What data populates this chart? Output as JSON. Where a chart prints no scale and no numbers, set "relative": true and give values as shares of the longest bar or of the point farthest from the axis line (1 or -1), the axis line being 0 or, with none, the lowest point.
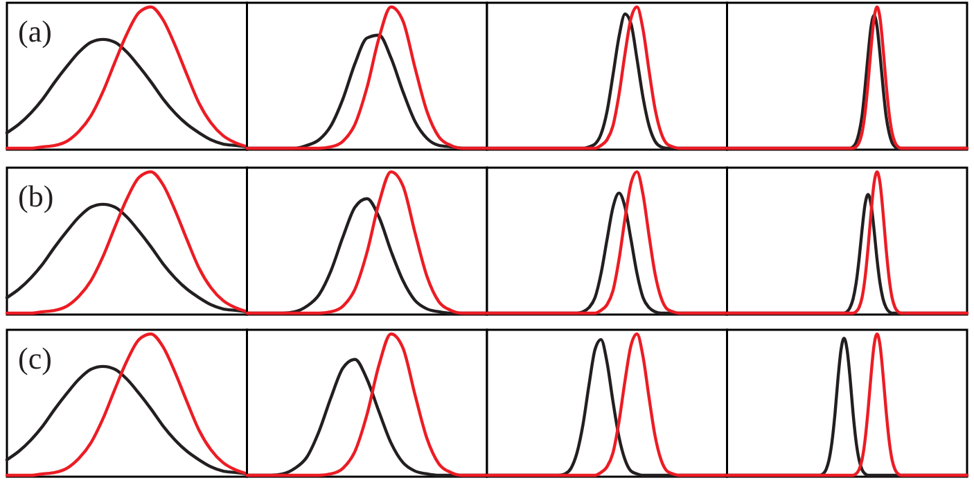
{
  "chart_data": [
    {
      "type": "line",
      "relative": true,
      "annotations": [
        "(a)"
      ],
      "categories": [
        null,
        null,
        null,
        null,
        null,
        null,
        null,
        null,
        null,
        null,
        null,
        null,
        null,
        null,
        null,
        null,
        null,
        null,
        null,
        null,
        null
      ],
      "series": [
        {
          "color": "#231f20",
          "values": [
            0.11,
            0.17,
            0.25,
            0.35,
            0.47,
            0.58,
            0.68,
            0.75,
            0.77,
            0.75,
            0.68,
            0.58,
            0.47,
            0.35,
            0.25,
            0.17,
            0.11,
            0.06,
            0.03,
            0.02,
            0.01
          ]
        },
        {
          "color": "#ec1c24",
          "values": [
            0,
            0,
            0,
            0.01,
            0.02,
            0.05,
            0.12,
            0.23,
            0.4,
            0.61,
            0.81,
            0.96,
            1,
            0.91,
            0.73,
            0.52,
            0.32,
            0.18,
            0.09,
            0.04,
            0.01
          ]
        }
      ]
    },
    {
      "type": "line",
      "relative": true,
      "categories": [
        null,
        null,
        null,
        null,
        null,
        null,
        null,
        null,
        null,
        null,
        null,
        null,
        null,
        null,
        null,
        null,
        null,
        null,
        null,
        null,
        null
      ],
      "series": [
        {
          "color": "#231f20",
          "values": [
            0,
            0,
            0,
            0,
            0,
            0.02,
            0.06,
            0.16,
            0.35,
            0.6,
            0.78,
            0.8,
            0.64,
            0.4,
            0.19,
            0.07,
            0.02,
            0.01,
            0,
            0,
            0
          ]
        },
        {
          "color": "#ec1c24",
          "values": [
            0,
            0,
            0,
            0,
            0,
            0,
            0,
            0.01,
            0.05,
            0.17,
            0.43,
            0.78,
            1,
            0.9,
            0.57,
            0.26,
            0.08,
            0.02,
            0,
            0,
            0
          ]
        }
      ]
    },
    {
      "type": "line",
      "relative": true,
      "categories": [
        null,
        null,
        null,
        null,
        null,
        null,
        null,
        null,
        null,
        null,
        null,
        null,
        null,
        null,
        null,
        null,
        null,
        null,
        null,
        null,
        null,
        null,
        null,
        null,
        null,
        null,
        null,
        null,
        null,
        null,
        null,
        null,
        null,
        null,
        null,
        null,
        null,
        null,
        null,
        null,
        null
      ],
      "series": [
        {
          "color": "#231f20",
          "values": [
            0,
            0,
            0,
            0,
            0,
            0,
            0,
            0,
            0,
            0,
            0,
            0,
            0,
            0,
            0,
            0,
            0,
            0.01,
            0.03,
            0.1,
            0.26,
            0.52,
            0.79,
            0.95,
            0.88,
            0.63,
            0.36,
            0.16,
            0.05,
            0.01,
            0,
            0,
            0,
            0,
            0,
            0,
            0,
            0,
            0,
            0,
            0
          ]
        },
        {
          "color": "#ec1c24",
          "values": [
            0,
            0,
            0,
            0,
            0,
            0,
            0,
            0,
            0,
            0,
            0,
            0,
            0,
            0,
            0,
            0,
            0,
            0,
            0,
            0.02,
            0.06,
            0.16,
            0.38,
            0.67,
            0.92,
            1,
            0.84,
            0.55,
            0.28,
            0.11,
            0.03,
            0.01,
            0,
            0,
            0,
            0,
            0,
            0,
            0,
            0,
            0
          ]
        }
      ]
    },
    {
      "type": "line",
      "relative": true,
      "categories": [
        null,
        null,
        null,
        null,
        null,
        null,
        null,
        null,
        null,
        null,
        null,
        null,
        null,
        null,
        null,
        null,
        null,
        null,
        null,
        null,
        null,
        null,
        null,
        null,
        null,
        null,
        null,
        null,
        null,
        null,
        null,
        null,
        null,
        null,
        null,
        null,
        null,
        null,
        null,
        null,
        null,
        null,
        null,
        null,
        null,
        null,
        null,
        null,
        null,
        null,
        null,
        null,
        null,
        null,
        null,
        null,
        null,
        null,
        null,
        null,
        null,
        null,
        null,
        null,
        null,
        null,
        null,
        null,
        null,
        null,
        null,
        null,
        null,
        null,
        null,
        null,
        null,
        null,
        null,
        null,
        null
      ],
      "series": [
        {
          "color": "#231f20",
          "values": [
            0,
            0,
            0,
            0,
            0,
            0,
            0,
            0,
            0,
            0,
            0,
            0,
            0,
            0,
            0,
            0,
            0,
            0,
            0,
            0,
            0,
            0,
            0,
            0,
            0,
            0,
            0,
            0,
            0,
            0,
            0,
            0,
            0,
            0,
            0,
            0,
            0,
            0,
            0,
            0,
            0,
            0,
            0.01,
            0.04,
            0.11,
            0.23,
            0.43,
            0.66,
            0.86,
            0.94,
            0.86,
            0.66,
            0.43,
            0.23,
            0.11,
            0.04,
            0.01,
            0,
            0,
            0,
            0,
            0,
            0,
            0,
            0,
            0,
            0,
            0,
            0,
            0,
            0,
            0,
            0,
            0,
            0,
            0,
            0,
            0,
            0,
            0,
            0
          ]
        },
        {
          "color": "#ec1c24",
          "values": [
            0,
            0,
            0,
            0,
            0,
            0,
            0,
            0,
            0,
            0,
            0,
            0,
            0,
            0,
            0,
            0,
            0,
            0,
            0,
            0,
            0,
            0,
            0,
            0,
            0,
            0,
            0,
            0,
            0,
            0,
            0,
            0,
            0,
            0,
            0,
            0,
            0,
            0,
            0,
            0,
            0,
            0,
            0,
            0.01,
            0.04,
            0.11,
            0.25,
            0.46,
            0.71,
            0.92,
            1,
            0.92,
            0.71,
            0.46,
            0.25,
            0.11,
            0.04,
            0.01,
            0,
            0,
            0,
            0,
            0,
            0,
            0,
            0,
            0,
            0,
            0,
            0,
            0,
            0,
            0,
            0,
            0,
            0,
            0,
            0,
            0,
            0,
            0
          ]
        }
      ]
    },
    {
      "type": "line",
      "relative": true,
      "annotations": [
        "(b)"
      ],
      "categories": [
        null,
        null,
        null,
        null,
        null,
        null,
        null,
        null,
        null,
        null,
        null,
        null,
        null,
        null,
        null,
        null,
        null,
        null,
        null,
        null,
        null
      ],
      "series": [
        {
          "color": "#231f20",
          "values": [
            0.11,
            0.17,
            0.25,
            0.35,
            0.47,
            0.58,
            0.68,
            0.75,
            0.77,
            0.75,
            0.68,
            0.58,
            0.47,
            0.35,
            0.25,
            0.17,
            0.11,
            0.06,
            0.03,
            0.02,
            0.01
          ]
        },
        {
          "color": "#ec1c24",
          "values": [
            0,
            0,
            0,
            0.01,
            0.02,
            0.05,
            0.12,
            0.23,
            0.4,
            0.61,
            0.81,
            0.96,
            1,
            0.91,
            0.73,
            0.52,
            0.32,
            0.18,
            0.09,
            0.04,
            0.01
          ]
        }
      ]
    },
    {
      "type": "line",
      "relative": true,
      "categories": [
        null,
        null,
        null,
        null,
        null,
        null,
        null,
        null,
        null,
        null,
        null,
        null,
        null,
        null,
        null,
        null,
        null,
        null,
        null,
        null,
        null
      ],
      "series": [
        {
          "color": "#231f20",
          "values": [
            0,
            0,
            0,
            0,
            0.01,
            0.05,
            0.13,
            0.3,
            0.54,
            0.75,
            0.81,
            0.68,
            0.44,
            0.23,
            0.09,
            0.03,
            0.01,
            0,
            0,
            0,
            0
          ]
        },
        {
          "color": "#ec1c24",
          "values": [
            0,
            0,
            0,
            0,
            0,
            0,
            0,
            0.01,
            0.05,
            0.17,
            0.43,
            0.78,
            1,
            0.9,
            0.57,
            0.26,
            0.08,
            0.02,
            0,
            0,
            0
          ]
        }
      ]
    },
    {
      "type": "line",
      "relative": true,
      "categories": [
        null,
        null,
        null,
        null,
        null,
        null,
        null,
        null,
        null,
        null,
        null,
        null,
        null,
        null,
        null,
        null,
        null,
        null,
        null,
        null,
        null,
        null,
        null,
        null,
        null,
        null,
        null,
        null,
        null,
        null,
        null,
        null,
        null,
        null,
        null,
        null,
        null,
        null,
        null,
        null,
        null
      ],
      "series": [
        {
          "color": "#231f20",
          "values": [
            0,
            0,
            0,
            0,
            0,
            0,
            0,
            0,
            0,
            0,
            0,
            0,
            0,
            0,
            0,
            0,
            0.01,
            0.04,
            0.11,
            0.28,
            0.52,
            0.75,
            0.85,
            0.75,
            0.52,
            0.28,
            0.11,
            0.04,
            0.01,
            0,
            0,
            0,
            0,
            0,
            0,
            0,
            0,
            0,
            0,
            0,
            0
          ]
        },
        {
          "color": "#ec1c24",
          "values": [
            0,
            0,
            0,
            0,
            0,
            0,
            0,
            0,
            0,
            0,
            0,
            0,
            0,
            0,
            0,
            0,
            0,
            0,
            0,
            0.02,
            0.06,
            0.16,
            0.38,
            0.67,
            0.92,
            1,
            0.84,
            0.55,
            0.28,
            0.11,
            0.03,
            0.01,
            0,
            0,
            0,
            0,
            0,
            0,
            0,
            0,
            0
          ]
        }
      ]
    },
    {
      "type": "line",
      "relative": true,
      "categories": [
        null,
        null,
        null,
        null,
        null,
        null,
        null,
        null,
        null,
        null,
        null,
        null,
        null,
        null,
        null,
        null,
        null,
        null,
        null,
        null,
        null,
        null,
        null,
        null,
        null,
        null,
        null,
        null,
        null,
        null,
        null,
        null,
        null,
        null,
        null,
        null,
        null,
        null,
        null,
        null,
        null,
        null,
        null,
        null,
        null,
        null,
        null,
        null,
        null,
        null,
        null,
        null,
        null,
        null,
        null,
        null,
        null,
        null,
        null,
        null,
        null,
        null,
        null,
        null,
        null,
        null,
        null,
        null,
        null,
        null,
        null,
        null,
        null,
        null,
        null,
        null,
        null,
        null,
        null,
        null,
        null
      ],
      "series": [
        {
          "color": "#231f20",
          "values": [
            0,
            0,
            0,
            0,
            0,
            0,
            0,
            0,
            0,
            0,
            0,
            0,
            0,
            0,
            0,
            0,
            0,
            0,
            0,
            0,
            0,
            0,
            0,
            0,
            0,
            0,
            0,
            0,
            0,
            0,
            0,
            0,
            0,
            0,
            0,
            0,
            0,
            0,
            0,
            0,
            0.01,
            0.04,
            0.1,
            0.21,
            0.38,
            0.59,
            0.77,
            0.84,
            0.77,
            0.59,
            0.38,
            0.21,
            0.1,
            0.04,
            0.01,
            0,
            0,
            0,
            0,
            0,
            0,
            0,
            0,
            0,
            0,
            0,
            0,
            0,
            0,
            0,
            0,
            0,
            0,
            0,
            0,
            0,
            0,
            0,
            0,
            0,
            0
          ]
        },
        {
          "color": "#ec1c24",
          "values": [
            0,
            0,
            0,
            0,
            0,
            0,
            0,
            0,
            0,
            0,
            0,
            0,
            0,
            0,
            0,
            0,
            0,
            0,
            0,
            0,
            0,
            0,
            0,
            0,
            0,
            0,
            0,
            0,
            0,
            0,
            0,
            0,
            0,
            0,
            0,
            0,
            0,
            0,
            0,
            0,
            0,
            0,
            0,
            0.01,
            0.04,
            0.11,
            0.25,
            0.46,
            0.71,
            0.92,
            1,
            0.92,
            0.71,
            0.46,
            0.25,
            0.11,
            0.04,
            0.01,
            0,
            0,
            0,
            0,
            0,
            0,
            0,
            0,
            0,
            0,
            0,
            0,
            0,
            0,
            0,
            0,
            0,
            0,
            0,
            0,
            0,
            0,
            0
          ]
        }
      ]
    },
    {
      "type": "line",
      "relative": true,
      "annotations": [
        "(c)"
      ],
      "categories": [
        null,
        null,
        null,
        null,
        null,
        null,
        null,
        null,
        null,
        null,
        null,
        null,
        null,
        null,
        null,
        null,
        null,
        null,
        null,
        null,
        null
      ],
      "series": [
        {
          "color": "#231f20",
          "values": [
            0.11,
            0.17,
            0.25,
            0.35,
            0.47,
            0.58,
            0.68,
            0.75,
            0.77,
            0.75,
            0.68,
            0.58,
            0.47,
            0.35,
            0.25,
            0.17,
            0.11,
            0.06,
            0.03,
            0.02,
            0.01
          ]
        },
        {
          "color": "#ec1c24",
          "values": [
            0,
            0,
            0,
            0.01,
            0.02,
            0.05,
            0.12,
            0.23,
            0.4,
            0.61,
            0.81,
            0.96,
            1,
            0.91,
            0.73,
            0.52,
            0.32,
            0.18,
            0.09,
            0.04,
            0.01
          ]
        }
      ]
    },
    {
      "type": "line",
      "relative": true,
      "categories": [
        null,
        null,
        null,
        null,
        null,
        null,
        null,
        null,
        null,
        null,
        null,
        null,
        null,
        null,
        null,
        null,
        null,
        null,
        null,
        null,
        null
      ],
      "series": [
        {
          "color": "#231f20",
          "values": [
            0,
            0,
            0,
            0.01,
            0.05,
            0.13,
            0.31,
            0.55,
            0.76,
            0.82,
            0.68,
            0.45,
            0.23,
            0.09,
            0.03,
            0.01,
            0,
            0,
            0,
            0,
            0
          ]
        },
        {
          "color": "#ec1c24",
          "values": [
            0,
            0,
            0,
            0,
            0,
            0,
            0,
            0.01,
            0.05,
            0.17,
            0.43,
            0.78,
            1,
            0.9,
            0.57,
            0.26,
            0.08,
            0.02,
            0,
            0,
            0
          ]
        }
      ]
    },
    {
      "type": "line",
      "relative": true,
      "categories": [
        null,
        null,
        null,
        null,
        null,
        null,
        null,
        null,
        null,
        null,
        null,
        null,
        null,
        null,
        null,
        null,
        null,
        null,
        null,
        null,
        null,
        null,
        null,
        null,
        null,
        null,
        null,
        null,
        null,
        null,
        null,
        null,
        null,
        null,
        null,
        null,
        null,
        null,
        null,
        null,
        null
      ],
      "series": [
        {
          "color": "#231f20",
          "values": [
            0,
            0,
            0,
            0,
            0,
            0,
            0,
            0,
            0,
            0,
            0,
            0,
            0,
            0.01,
            0.05,
            0.16,
            0.36,
            0.64,
            0.89,
            0.96,
            0.8,
            0.52,
            0.27,
            0.11,
            0.03,
            0.01,
            0,
            0,
            0,
            0,
            0,
            0,
            0,
            0,
            0,
            0,
            0,
            0,
            0,
            0,
            0
          ]
        },
        {
          "color": "#ec1c24",
          "values": [
            0,
            0,
            0,
            0,
            0,
            0,
            0,
            0,
            0,
            0,
            0,
            0,
            0,
            0,
            0,
            0,
            0,
            0,
            0,
            0.02,
            0.06,
            0.16,
            0.38,
            0.67,
            0.92,
            1,
            0.84,
            0.55,
            0.28,
            0.11,
            0.03,
            0.01,
            0,
            0,
            0,
            0,
            0,
            0,
            0,
            0,
            0
          ]
        }
      ]
    },
    {
      "type": "line",
      "relative": true,
      "categories": [
        null,
        null,
        null,
        null,
        null,
        null,
        null,
        null,
        null,
        null,
        null,
        null,
        null,
        null,
        null,
        null,
        null,
        null,
        null,
        null,
        null,
        null,
        null,
        null,
        null,
        null,
        null,
        null,
        null,
        null,
        null,
        null,
        null,
        null,
        null,
        null,
        null,
        null,
        null,
        null,
        null,
        null,
        null,
        null,
        null,
        null,
        null,
        null,
        null,
        null,
        null,
        null,
        null,
        null,
        null,
        null,
        null,
        null,
        null,
        null,
        null,
        null,
        null,
        null,
        null,
        null,
        null,
        null,
        null,
        null,
        null,
        null,
        null,
        null,
        null,
        null,
        null,
        null,
        null,
        null,
        null
      ],
      "series": [
        {
          "color": "#231f20",
          "values": [
            0,
            0,
            0,
            0,
            0,
            0,
            0,
            0,
            0,
            0,
            0,
            0,
            0,
            0,
            0,
            0,
            0,
            0,
            0,
            0,
            0,
            0,
            0,
            0,
            0,
            0,
            0,
            0,
            0,
            0,
            0,
            0,
            0.01,
            0.04,
            0.11,
            0.24,
            0.44,
            0.69,
            0.89,
            0.97,
            0.89,
            0.69,
            0.44,
            0.24,
            0.11,
            0.04,
            0.01,
            0,
            0,
            0,
            0,
            0,
            0,
            0,
            0,
            0,
            0,
            0,
            0,
            0,
            0,
            0,
            0,
            0,
            0,
            0,
            0,
            0,
            0,
            0,
            0,
            0,
            0,
            0,
            0,
            0,
            0,
            0,
            0,
            0,
            0
          ]
        },
        {
          "color": "#ec1c24",
          "values": [
            0,
            0,
            0,
            0,
            0,
            0,
            0,
            0,
            0,
            0,
            0,
            0,
            0,
            0,
            0,
            0,
            0,
            0,
            0,
            0,
            0,
            0,
            0,
            0,
            0,
            0,
            0,
            0,
            0,
            0,
            0,
            0,
            0,
            0,
            0,
            0,
            0,
            0,
            0,
            0,
            0,
            0,
            0,
            0.01,
            0.04,
            0.11,
            0.25,
            0.46,
            0.71,
            0.92,
            1,
            0.92,
            0.71,
            0.46,
            0.25,
            0.11,
            0.04,
            0.01,
            0,
            0,
            0,
            0,
            0,
            0,
            0,
            0,
            0,
            0,
            0,
            0,
            0,
            0,
            0,
            0,
            0,
            0,
            0,
            0,
            0,
            0,
            0
          ]
        }
      ]
    }
  ]
}
